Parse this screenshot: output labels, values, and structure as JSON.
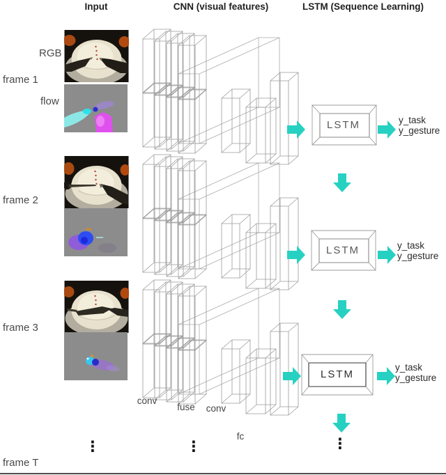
{
  "title": {
    "input": "Input",
    "cnn": "CNN (visual features)",
    "lstm": "LSTM (Sequence Learning)"
  },
  "frames": {
    "f1": "frame 1",
    "f2": "frame 2",
    "f3": "frame 3",
    "fT": "frame T"
  },
  "input_labels": {
    "rgb": "RGB",
    "flow": "flow"
  },
  "cnn_labels": {
    "conv1": "conv",
    "fuse": "fuse",
    "conv2": "conv",
    "fc": "fc"
  },
  "lstm": {
    "label": "LSTM"
  },
  "outputs": {
    "task": "y_task",
    "gesture": "y_gesture"
  },
  "ellipsis": "⋮",
  "colors": {
    "accent": "#27d1c2",
    "wire": "#9b9b9b",
    "wire_soft": "#ababab",
    "box_inner": "#8a8a8a",
    "box_inner_dark": "#333333"
  }
}
